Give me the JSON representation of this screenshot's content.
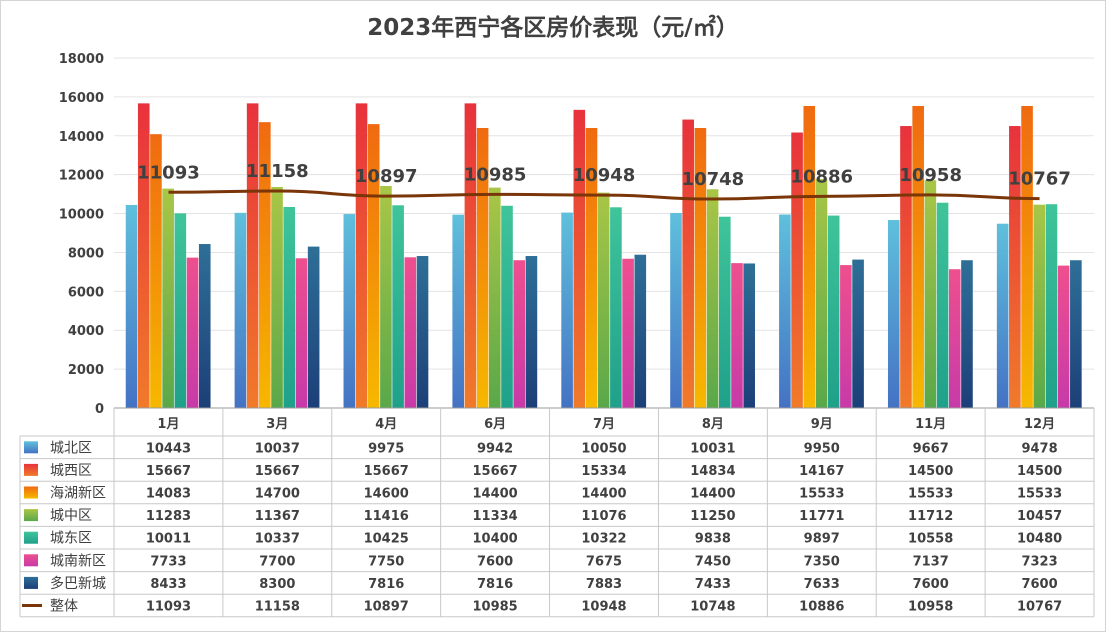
{
  "chart_data": {
    "type": "bar",
    "title": "2023年西宁各区房价表现（元/㎡）",
    "categories": [
      "1月",
      "3月",
      "4月",
      "6月",
      "7月",
      "8月",
      "9月",
      "11月",
      "12月"
    ],
    "ylim": [
      0,
      18000
    ],
    "yticks": [
      0,
      2000,
      4000,
      6000,
      8000,
      10000,
      12000,
      14000,
      16000,
      18000
    ],
    "grid": true,
    "legend": "data-table-below",
    "series": [
      {
        "name": "城北区",
        "type": "bar",
        "color_top": "#5fc0dc",
        "color_bottom": "#4472c4",
        "values": [
          10443,
          10037,
          9975,
          9942,
          10050,
          10031,
          9950,
          9667,
          9478
        ]
      },
      {
        "name": "城西区",
        "type": "bar",
        "color_top": "#e8323c",
        "color_bottom": "#f07a2a",
        "values": [
          15667,
          15667,
          15667,
          15667,
          15334,
          14834,
          14167,
          14500,
          14500
        ]
      },
      {
        "name": "海湖新区",
        "type": "bar",
        "color_top": "#f06a10",
        "color_bottom": "#f6b800",
        "values": [
          14083,
          14700,
          14600,
          14400,
          14400,
          14400,
          15533,
          15533,
          15533
        ]
      },
      {
        "name": "城中区",
        "type": "bar",
        "color_top": "#a9c646",
        "color_bottom": "#5aa84a",
        "values": [
          11283,
          11367,
          11416,
          11334,
          11076,
          11250,
          11771,
          11712,
          10457
        ]
      },
      {
        "name": "城东区",
        "type": "bar",
        "color_top": "#3fc49a",
        "color_bottom": "#1fa08a",
        "values": [
          10011,
          10337,
          10425,
          10400,
          10322,
          9838,
          9897,
          10558,
          10480
        ]
      },
      {
        "name": "城南新区",
        "type": "bar",
        "color_top": "#ee4f8e",
        "color_bottom": "#c73aa8",
        "values": [
          7733,
          7700,
          7750,
          7600,
          7675,
          7450,
          7350,
          7137,
          7323
        ]
      },
      {
        "name": "多巴新城",
        "type": "bar",
        "color_top": "#2e6f97",
        "color_bottom": "#1c3f78",
        "values": [
          8433,
          8300,
          7816,
          7816,
          7883,
          7433,
          7633,
          7600,
          7600
        ]
      },
      {
        "name": "整体",
        "type": "line",
        "color": "#7a3508",
        "values": [
          11093,
          11158,
          10897,
          10985,
          10948,
          10748,
          10886,
          10958,
          10767
        ]
      }
    ]
  }
}
